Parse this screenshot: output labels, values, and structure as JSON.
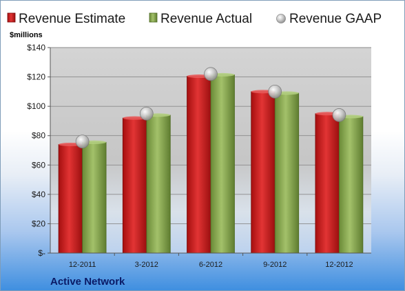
{
  "chart_data": {
    "type": "bar",
    "company": "Active Network",
    "unit_label": "$millions",
    "categories": [
      "12-2011",
      "3-2012",
      "6-2012",
      "9-2012",
      "12-2012"
    ],
    "series": [
      {
        "name": "Revenue Estimate",
        "kind": "bar",
        "color": "#cc1f1f",
        "values": [
          74,
          92,
          120.5,
          110,
          95
        ]
      },
      {
        "name": "Revenue Actual",
        "kind": "bar",
        "color": "#7f9f47",
        "values": [
          75.5,
          94,
          121.5,
          109,
          93
        ]
      },
      {
        "name": "Revenue GAAP",
        "kind": "marker",
        "color": "#b9b9b9",
        "values": [
          76,
          95,
          122,
          110,
          94
        ]
      }
    ],
    "ylim": [
      0,
      140
    ],
    "yticks": [
      0,
      20,
      40,
      60,
      80,
      100,
      120,
      140
    ],
    "ytick_labels": [
      "$-",
      "$20",
      "$40",
      "$60",
      "$80",
      "$100",
      "$120",
      "$140"
    ],
    "grid": true,
    "legend_position": "top"
  }
}
